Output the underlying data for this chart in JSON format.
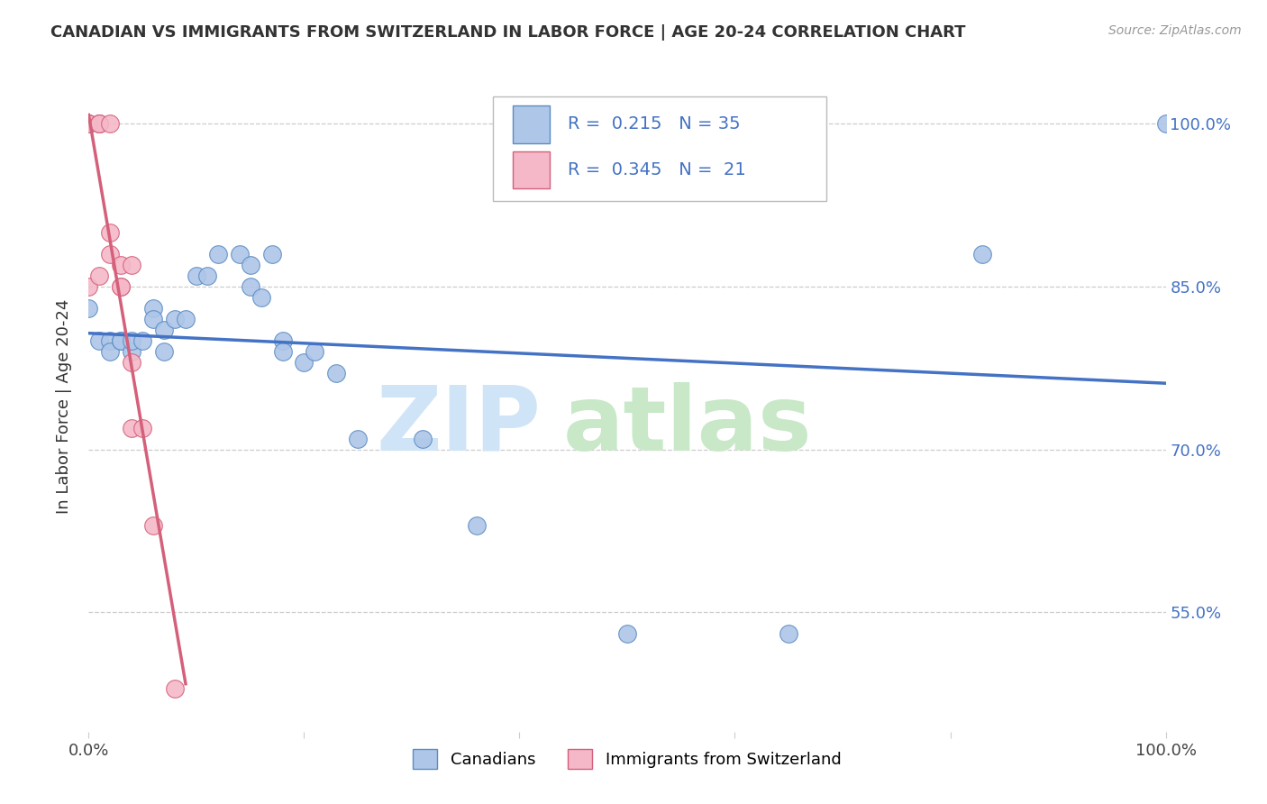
{
  "title": "CANADIAN VS IMMIGRANTS FROM SWITZERLAND IN LABOR FORCE | AGE 20-24 CORRELATION CHART",
  "source": "Source: ZipAtlas.com",
  "ylabel": "In Labor Force | Age 20-24",
  "xlim": [
    0,
    1.0
  ],
  "ylim": [
    0.44,
    1.04
  ],
  "xticks": [
    0.0,
    0.2,
    0.4,
    0.6,
    0.8,
    1.0
  ],
  "xtick_labels": [
    "0.0%",
    "",
    "",
    "",
    "",
    "100.0%"
  ],
  "yticks": [
    0.55,
    0.7,
    0.85,
    1.0
  ],
  "ytick_labels": [
    "55.0%",
    "70.0%",
    "85.0%",
    "100.0%"
  ],
  "canadian_color": "#aec6e8",
  "swiss_color": "#f4b8c8",
  "canadian_edge_color": "#5b8dc4",
  "swiss_edge_color": "#d4607a",
  "canadian_line_color": "#4472c4",
  "swiss_line_color": "#d4607a",
  "legend_r_canadian": "R =  0.215",
  "legend_n_canadian": "N = 35",
  "legend_r_swiss": "R =  0.345",
  "legend_n_swiss": "N =  21",
  "canadian_x": [
    0.0,
    0.01,
    0.02,
    0.02,
    0.03,
    0.03,
    0.04,
    0.04,
    0.05,
    0.06,
    0.06,
    0.07,
    0.07,
    0.08,
    0.09,
    0.1,
    0.11,
    0.12,
    0.14,
    0.15,
    0.15,
    0.16,
    0.17,
    0.18,
    0.18,
    0.2,
    0.21,
    0.23,
    0.25,
    0.31,
    0.36,
    0.5,
    0.65,
    0.83,
    1.0
  ],
  "canadian_y": [
    0.83,
    0.8,
    0.8,
    0.79,
    0.8,
    0.8,
    0.79,
    0.8,
    0.8,
    0.83,
    0.82,
    0.79,
    0.81,
    0.82,
    0.82,
    0.86,
    0.86,
    0.88,
    0.88,
    0.87,
    0.85,
    0.84,
    0.88,
    0.8,
    0.79,
    0.78,
    0.79,
    0.77,
    0.71,
    0.71,
    0.63,
    0.53,
    0.53,
    0.88,
    1.0
  ],
  "swiss_x": [
    0.0,
    0.0,
    0.0,
    0.0,
    0.0,
    0.01,
    0.01,
    0.01,
    0.01,
    0.02,
    0.02,
    0.02,
    0.03,
    0.03,
    0.03,
    0.04,
    0.04,
    0.04,
    0.05,
    0.06,
    0.08
  ],
  "swiss_y": [
    1.0,
    1.0,
    1.0,
    1.0,
    0.85,
    1.0,
    1.0,
    1.0,
    0.86,
    1.0,
    0.9,
    0.88,
    0.87,
    0.85,
    0.85,
    0.87,
    0.78,
    0.72,
    0.72,
    0.63,
    0.48
  ],
  "watermark_zip_color": "#d0e4f7",
  "watermark_atlas_color": "#c8e8c8",
  "background_color": "#ffffff",
  "grid_color": "#cccccc"
}
